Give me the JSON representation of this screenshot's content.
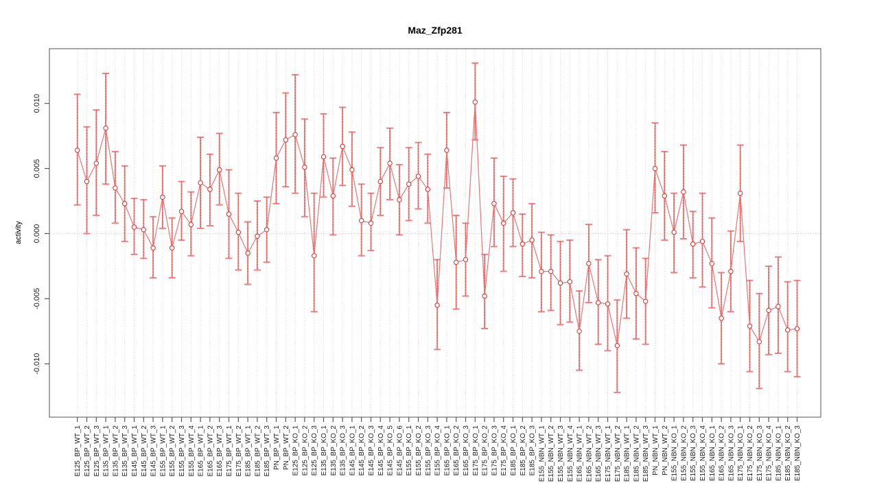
{
  "title": "Maz_Zfp281",
  "chart_data": {
    "type": "line",
    "title": "Maz_Zfp281",
    "xlabel": "",
    "ylabel": "activity",
    "legend_position": "none",
    "grid": {
      "vertical_dotted_per_category": true,
      "horizontal_zero_dotted": true
    },
    "ylim": [
      -0.0141,
      0.0142
    ],
    "yticks": [
      0.01,
      0.005,
      0.0,
      -0.005,
      -0.01
    ],
    "ytick_labels": [
      "0.010",
      "0.005",
      "0.000",
      "-0.005",
      "-0.010"
    ],
    "point_style": "open-circle-with-error-bars",
    "colors": {
      "error_bar": "#f08080",
      "error_bar_overlay": "#e53935",
      "line": "#f07373",
      "point_stroke": "#e53935",
      "point_fill": "#ffffff",
      "grid": "#d4d4d4",
      "zero_line": "#c8c8c8",
      "box": "#6e6e6e",
      "tick": "#555555",
      "text": "#1a1a1a"
    },
    "categories": [
      "E125_BP_WT_1",
      "E125_BP_WT_2",
      "E125_BP_WT_3",
      "E135_BP_WT_1",
      "E135_BP_WT_2",
      "E135_BP_WT_3",
      "E145_BP_WT_1",
      "E145_BP_WT_2",
      "E145_BP_WT_3",
      "E155_BP_WT_1",
      "E155_BP_WT_2",
      "E155_BP_WT_3",
      "E155_BP_WT_4",
      "E165_BP_WT_1",
      "E165_BP_WT_2",
      "E165_BP_WT_3",
      "E175_BP_WT_1",
      "E175_BP_WT_2",
      "E185_BP_WT_1",
      "E185_BP_WT_2",
      "E185_BP_WT_3",
      "PN_BP_WT_1",
      "PN_BP_WT_2",
      "E125_BP_KO_1",
      "E125_BP_KO_2",
      "E125_BP_KO_3",
      "E135_BP_KO_1",
      "E135_BP_KO_2",
      "E135_BP_KO_3",
      "E145_BP_KO_1",
      "E145_BP_KO_2",
      "E145_BP_KO_3",
      "E145_BP_KO_4",
      "E145_BP_KO_5",
      "E145_BP_KO_6",
      "E155_BP_KO_1",
      "E155_BP_KO_2",
      "E155_BP_KO_3",
      "E155_BP_KO_4",
      "E165_BP_KO_1",
      "E165_BP_KO_2",
      "E165_BP_KO_3",
      "E175_BP_KO_1",
      "E175_BP_KO_2",
      "E175_BP_KO_3",
      "E175_BP_KO_4",
      "E185_BP_KO_1",
      "E185_BP_KO_2",
      "E185_BP_KO_3",
      "E155_NBN_WT_1",
      "E155_NBN_WT_2",
      "E155_NBN_WT_3",
      "E155_NBN_WT_4",
      "E165_NBN_WT_1",
      "E165_NBN_WT_2",
      "E165_NBN_WT_3",
      "E175_NBN_WT_1",
      "E175_NBN_WT_2",
      "E185_NBN_WT_1",
      "E185_NBN_WT_2",
      "E185_NBN_WT_3",
      "PN_NBN_WT_1",
      "PN_NBN_WT_2",
      "E155_NBN_KO_1",
      "E155_NBN_KO_2",
      "E155_NBN_KO_3",
      "E155_NBN_KO_4",
      "E165_NBN_KO_1",
      "E165_NBN_KO_2",
      "E165_NBN_KO_3",
      "E175_NBN_KO_1",
      "E175_NBN_KO_2",
      "E175_NBN_KO_3",
      "E175_NBN_KO_4",
      "E185_NBN_KO_1",
      "E185_NBN_KO_2",
      "E185_NBN_KO_3"
    ],
    "series": [
      {
        "name": "activity",
        "values": [
          0.0064,
          0.004,
          0.0054,
          0.0081,
          0.0035,
          0.0023,
          0.0005,
          0.0003,
          -0.0011,
          0.0028,
          -0.0011,
          0.0017,
          0.0007,
          0.0039,
          0.0034,
          0.0049,
          0.0015,
          0.0001,
          -0.0015,
          -0.0002,
          0.0003,
          0.0058,
          0.0072,
          0.0076,
          0.0051,
          -0.0017,
          0.0059,
          0.0029,
          0.0067,
          0.0049,
          0.001,
          0.0008,
          0.004,
          0.0054,
          0.0026,
          0.0038,
          0.0044,
          0.0034,
          -0.0055,
          0.0064,
          -0.0022,
          -0.002,
          0.0101,
          -0.0048,
          0.0023,
          0.0008,
          0.0016,
          -0.0008,
          -0.0005,
          -0.0029,
          -0.0029,
          -0.0038,
          -0.0037,
          -0.0075,
          -0.0023,
          -0.0053,
          -0.0054,
          -0.0086,
          -0.0031,
          -0.0046,
          -0.0052,
          0.005,
          0.0029,
          0.0001,
          0.0032,
          -0.0008,
          -0.0006,
          -0.0023,
          -0.0065,
          -0.0029,
          0.0031,
          -0.0071,
          -0.0083,
          -0.0059,
          -0.0056,
          -0.0074,
          -0.0073
        ],
        "err_low": [
          0.0022,
          0.0,
          0.0014,
          0.0038,
          0.0008,
          -0.0006,
          -0.0016,
          -0.0019,
          -0.0034,
          0.0004,
          -0.0034,
          -0.0005,
          -0.0017,
          0.0004,
          0.0006,
          0.0022,
          -0.0019,
          -0.0028,
          -0.0039,
          -0.0028,
          -0.0022,
          0.0023,
          0.0036,
          0.0031,
          0.0013,
          -0.006,
          0.0028,
          -0.0001,
          0.0037,
          0.0021,
          -0.0017,
          -0.0013,
          0.0014,
          0.0026,
          -0.0001,
          0.001,
          0.0019,
          0.0008,
          -0.0089,
          0.0035,
          -0.0058,
          -0.0048,
          0.0072,
          -0.0073,
          -0.001,
          -0.0029,
          -0.001,
          -0.0033,
          -0.0034,
          -0.006,
          -0.0059,
          -0.007,
          -0.0068,
          -0.0105,
          -0.0053,
          -0.0085,
          -0.009,
          -0.0122,
          -0.0065,
          -0.0081,
          -0.0085,
          0.0016,
          -0.0005,
          -0.003,
          -0.0004,
          -0.0034,
          -0.0041,
          -0.0057,
          -0.01,
          -0.006,
          -0.0006,
          -0.0106,
          -0.0119,
          -0.0093,
          -0.0092,
          -0.0106,
          -0.011
        ],
        "err_high": [
          0.0107,
          0.0082,
          0.0095,
          0.0123,
          0.0063,
          0.0052,
          0.0027,
          0.0026,
          0.0013,
          0.0052,
          0.0012,
          0.004,
          0.0032,
          0.0074,
          0.0061,
          0.0077,
          0.0049,
          0.0031,
          0.0009,
          0.0025,
          0.0028,
          0.0093,
          0.0108,
          0.0122,
          0.0088,
          0.0031,
          0.0092,
          0.0058,
          0.0097,
          0.0078,
          0.0038,
          0.0031,
          0.0066,
          0.0081,
          0.0053,
          0.0066,
          0.007,
          0.0061,
          -0.002,
          0.0093,
          0.0014,
          0.0008,
          0.0131,
          -0.0016,
          0.0058,
          0.0044,
          0.0042,
          0.0015,
          0.0023,
          0.0001,
          -0.0001,
          -0.0006,
          -0.0005,
          -0.0044,
          0.0007,
          -0.002,
          -0.0017,
          -0.0051,
          0.0003,
          -0.0011,
          -0.0019,
          0.0085,
          0.0063,
          0.0031,
          0.0068,
          0.0017,
          0.0031,
          0.0012,
          -0.003,
          0.0002,
          0.0068,
          -0.0036,
          -0.0046,
          -0.0025,
          -0.0018,
          -0.0037,
          -0.0036
        ]
      }
    ]
  }
}
